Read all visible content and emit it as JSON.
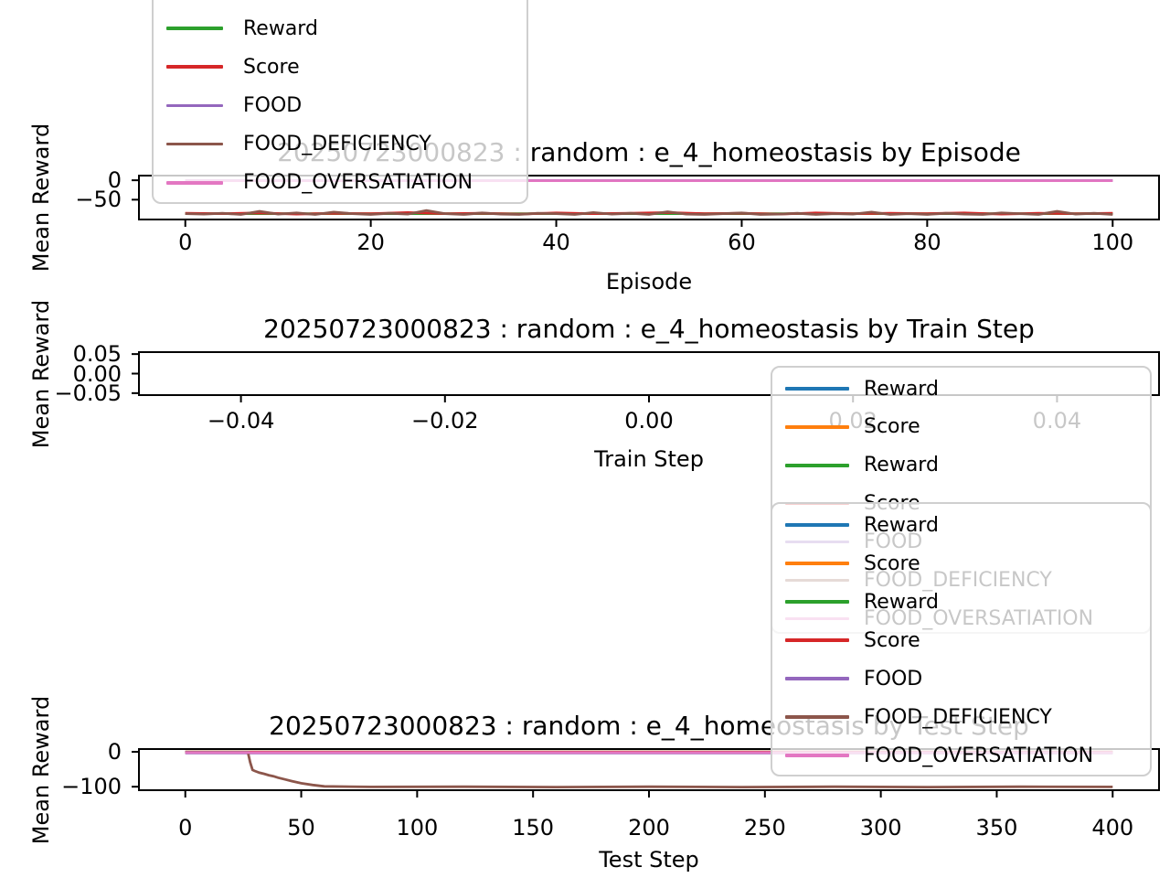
{
  "figure": {
    "background": "#ffffff"
  },
  "colors": {
    "blue": "#1f77b4",
    "orange": "#ff7f0e",
    "green": "#2ca02c",
    "red": "#d62728",
    "purple": "#9467bd",
    "brown": "#8c564b",
    "pink": "#e377c2",
    "spine": "#000000",
    "legend_border": "#cfcfcf"
  },
  "legends": {
    "top_left": {
      "entries": [
        {
          "label": "Reward",
          "color": "green"
        },
        {
          "label": "Score",
          "color": "red"
        },
        {
          "label": "FOOD",
          "color": "purple"
        },
        {
          "label": "FOOD_DEFICIENCY",
          "color": "brown"
        },
        {
          "label": "FOOD_OVERSATIATION",
          "color": "pink"
        }
      ]
    },
    "right_upper": {
      "entries": [
        {
          "label": "Reward",
          "color": "blue"
        },
        {
          "label": "Score",
          "color": "orange"
        },
        {
          "label": "Reward",
          "color": "green"
        },
        {
          "label": "Score",
          "color": "red"
        },
        {
          "label": "FOOD",
          "color": "purple"
        },
        {
          "label": "FOOD_DEFICIENCY",
          "color": "brown"
        },
        {
          "label": "FOOD_OVERSATIATION",
          "color": "pink"
        }
      ]
    },
    "right_lower": {
      "entries": [
        {
          "label": "Reward",
          "color": "blue"
        },
        {
          "label": "Score",
          "color": "orange"
        },
        {
          "label": "Reward",
          "color": "green"
        },
        {
          "label": "Score",
          "color": "red"
        },
        {
          "label": "FOOD",
          "color": "purple"
        },
        {
          "label": "FOOD_DEFICIENCY",
          "color": "brown"
        },
        {
          "label": "FOOD_OVERSATIATION",
          "color": "pink"
        }
      ]
    }
  },
  "chart_data": [
    {
      "type": "line",
      "title": "20250723000823 : random : e_4_homeostasis by Episode",
      "xlabel": "Episode",
      "ylabel": "Mean Reward",
      "xlim": [
        -5,
        105
      ],
      "ylim": [
        -101,
        12
      ],
      "xticks": {
        "values": [
          0,
          20,
          40,
          60,
          80,
          100
        ],
        "labels": [
          "0",
          "20",
          "40",
          "60",
          "80",
          "100"
        ]
      },
      "yticks": {
        "values": [
          0,
          -50
        ],
        "labels": [
          "0",
          "−50"
        ]
      },
      "grid": false,
      "legend_position": "upper-left (overflowing figure top)",
      "series": [
        {
          "name": "Reward",
          "color": "green",
          "x": [
            0,
            100
          ],
          "y": [
            -86,
            -86
          ]
        },
        {
          "name": "Score",
          "color": "red",
          "x": [
            0,
            4,
            8,
            12,
            16,
            20,
            24,
            28,
            32,
            36,
            40,
            44,
            48,
            52,
            56,
            60,
            64,
            68,
            72,
            76,
            80,
            84,
            88,
            92,
            96,
            100
          ],
          "y": [
            -85,
            -86,
            -84,
            -87,
            -85,
            -86,
            -83,
            -86,
            -85,
            -87,
            -84,
            -86,
            -85,
            -83,
            -86,
            -85,
            -87,
            -84,
            -86,
            -85,
            -86,
            -84,
            -87,
            -85,
            -86,
            -85
          ]
        },
        {
          "name": "FOOD",
          "color": "purple",
          "x": [
            0,
            100
          ],
          "y": [
            -0.8,
            -0.8
          ]
        },
        {
          "name": "FOOD_DEFICIENCY",
          "color": "brown",
          "x": [
            0,
            2,
            4,
            6,
            8,
            10,
            12,
            14,
            16,
            18,
            20,
            22,
            24,
            26,
            28,
            30,
            32,
            34,
            36,
            38,
            40,
            42,
            44,
            46,
            48,
            50,
            52,
            54,
            56,
            58,
            60,
            62,
            64,
            66,
            68,
            70,
            72,
            74,
            76,
            78,
            80,
            82,
            84,
            86,
            88,
            90,
            92,
            94,
            96,
            98,
            100
          ],
          "y": [
            -86,
            -87,
            -85,
            -88,
            -80,
            -87,
            -84,
            -88,
            -82,
            -86,
            -88,
            -85,
            -87,
            -78,
            -86,
            -88,
            -84,
            -87,
            -88,
            -85,
            -86,
            -88,
            -83,
            -87,
            -85,
            -88,
            -81,
            -87,
            -88,
            -86,
            -84,
            -88,
            -87,
            -85,
            -88,
            -86,
            -87,
            -82,
            -88,
            -86,
            -88,
            -85,
            -87,
            -88,
            -84,
            -86,
            -88,
            -80,
            -87,
            -85,
            -88
          ]
        },
        {
          "name": "FOOD_OVERSATIATION",
          "color": "pink",
          "x": [
            0,
            100
          ],
          "y": [
            -1.3,
            -1.3
          ]
        }
      ]
    },
    {
      "type": "line",
      "title": "20250723000823 : random : e_4_homeostasis by Train Step",
      "xlabel": "Train Step",
      "ylabel": "Mean Reward",
      "xlim": [
        -0.05,
        0.05
      ],
      "ylim": [
        -0.055,
        0.055
      ],
      "xticks": {
        "values": [
          -0.04,
          -0.02,
          0.0,
          0.02,
          0.04
        ],
        "labels": [
          "−0.04",
          "−0.02",
          "0.00",
          "0.02",
          "0.04"
        ]
      },
      "yticks": {
        "values": [
          0.05,
          0.0,
          -0.05
        ],
        "labels": [
          "0.05",
          "0.00",
          "−0.05"
        ]
      },
      "grid": false,
      "legend_position": "right (overlapping plot and area below)",
      "series": []
    },
    {
      "type": "line",
      "title": "20250723000823 : random : e_4_homeostasis by Test Step",
      "xlabel": "Test Step",
      "ylabel": "Mean Reward",
      "xlim": [
        -20,
        420
      ],
      "ylim": [
        -110,
        8
      ],
      "xticks": {
        "values": [
          0,
          50,
          100,
          150,
          200,
          250,
          300,
          350,
          400
        ],
        "labels": [
          "0",
          "50",
          "100",
          "150",
          "200",
          "250",
          "300",
          "350",
          "400"
        ]
      },
      "yticks": {
        "values": [
          0,
          -100
        ],
        "labels": [
          "0",
          "−100"
        ]
      },
      "grid": false,
      "legend_position": "upper-right (overlapping plot)",
      "series": [
        {
          "name": "Reward",
          "color": "blue",
          "x": [
            0,
            400
          ],
          "y": [
            0,
            0
          ]
        },
        {
          "name": "Score",
          "color": "orange",
          "x": [
            0,
            400
          ],
          "y": [
            0,
            0
          ]
        },
        {
          "name": "Reward",
          "color": "green",
          "x": [
            0,
            400
          ],
          "y": [
            -0.8,
            -0.8
          ]
        },
        {
          "name": "Score",
          "color": "red",
          "x": [
            0,
            400
          ],
          "y": [
            -0.8,
            -0.8
          ]
        },
        {
          "name": "FOOD",
          "color": "purple",
          "x": [
            0,
            400
          ],
          "y": [
            -3.5,
            -3.5
          ]
        },
        {
          "name": "FOOD_DEFICIENCY",
          "color": "brown",
          "x": [
            0,
            27,
            28,
            29,
            30,
            32,
            34,
            36,
            38,
            40,
            43,
            46,
            50,
            55,
            60,
            80,
            120,
            160,
            200,
            240,
            280,
            320,
            360,
            400
          ],
          "y": [
            -1,
            -1,
            -30,
            -52,
            -55,
            -60,
            -63,
            -67,
            -70,
            -74,
            -79,
            -84,
            -90,
            -95,
            -99,
            -100.5,
            -100,
            -101,
            -100,
            -101,
            -100,
            -101,
            -100,
            -100.5
          ]
        },
        {
          "name": "FOOD_OVERSATIATION",
          "color": "pink",
          "x": [
            0,
            400
          ],
          "y": [
            -2,
            -2
          ]
        }
      ]
    }
  ]
}
